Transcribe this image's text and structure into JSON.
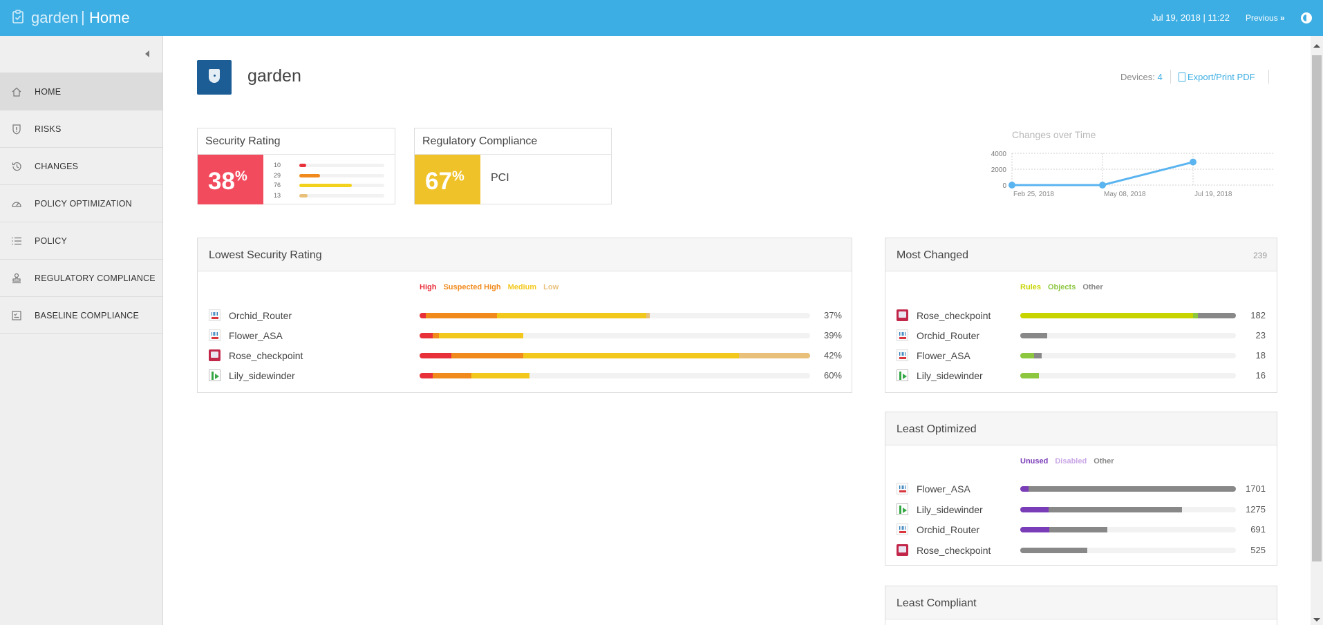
{
  "header": {
    "brand": "garden",
    "separator": "|",
    "page": "Home",
    "datetime": "Jul 19, 2018 | 11:22",
    "previous_label": "Previous",
    "previous_icon": "»"
  },
  "sidebar": {
    "items": [
      {
        "label": "HOME",
        "icon": "home-icon",
        "active": true
      },
      {
        "label": "RISKS",
        "icon": "shield-alert-icon"
      },
      {
        "label": "CHANGES",
        "icon": "history-icon"
      },
      {
        "label": "POLICY OPTIMIZATION",
        "icon": "gauge-icon"
      },
      {
        "label": "POLICY",
        "icon": "list-icon"
      },
      {
        "label": "REGULATORY COMPLIANCE",
        "icon": "stamp-icon"
      },
      {
        "label": "BASELINE COMPLIANCE",
        "icon": "checklist-icon"
      }
    ]
  },
  "device": {
    "name": "garden",
    "devices_label": "Devices:",
    "devices_count": "4",
    "export_label": "Export/Print PDF"
  },
  "security_rating": {
    "title": "Security Rating",
    "value": "38",
    "unit": "%",
    "color": "#f34b5e",
    "breakdown": [
      {
        "value": "10",
        "fraction": 0.08,
        "color": "#e8303a"
      },
      {
        "value": "29",
        "fraction": 0.24,
        "color": "#f08a1d"
      },
      {
        "value": "76",
        "fraction": 0.62,
        "color": "#f3d21d"
      },
      {
        "value": "13",
        "fraction": 0.1,
        "color": "#e8c07a"
      }
    ]
  },
  "regulatory_compliance": {
    "title": "Regulatory Compliance",
    "value": "67",
    "unit": "%",
    "color": "#f0c22a",
    "standard": "PCI"
  },
  "changes_over_time": {
    "title": "Changes over Time",
    "chart_data": {
      "type": "line",
      "title": "Changes over Time",
      "x": [
        "Feb 25, 2018",
        "May 08, 2018",
        "Jul 19, 2018"
      ],
      "series": [
        {
          "values": [
            0,
            0,
            2900
          ]
        }
      ],
      "yticks": [
        "4000",
        "2000",
        "0"
      ],
      "ylim": [
        0,
        4000
      ],
      "grid": true,
      "color": "#5ab4f0"
    }
  },
  "lowest_security": {
    "title": "Lowest Security Rating",
    "legend": [
      {
        "label": "High",
        "color": "#e8303a"
      },
      {
        "label": "Suspected High",
        "color": "#f08a1d"
      },
      {
        "label": "Medium",
        "color": "#f3c81d"
      },
      {
        "label": "Low",
        "color": "#e8c07a"
      }
    ],
    "rows": [
      {
        "name": "Orchid_Router",
        "icon": "cisco",
        "value": "37%",
        "segments": [
          0.016,
          0.182,
          0.383,
          0.009
        ]
      },
      {
        "name": "Flower_ASA",
        "icon": "cisco",
        "value": "39%",
        "segments": [
          0.033,
          0.017,
          0.215,
          0
        ]
      },
      {
        "name": "Rose_checkpoint",
        "icon": "checkpoint",
        "value": "42%",
        "segments": [
          0.082,
          0.184,
          0.551,
          0.183
        ]
      },
      {
        "name": "Lily_sidewinder",
        "icon": "sidewinder",
        "value": "60%",
        "segments": [
          0.033,
          0.1,
          0.148,
          0
        ]
      }
    ]
  },
  "most_changed": {
    "title": "Most Changed",
    "count": "239",
    "legend": [
      {
        "label": "Rules",
        "color": "#c8d400"
      },
      {
        "label": "Objects",
        "color": "#8dc63f"
      },
      {
        "label": "Other",
        "color": "#888888"
      }
    ],
    "rows": [
      {
        "name": "Rose_checkpoint",
        "icon": "checkpoint",
        "value": "182",
        "segments": [
          0.8,
          0.025,
          0.175
        ]
      },
      {
        "name": "Orchid_Router",
        "icon": "cisco",
        "value": "23",
        "segments": [
          0,
          0,
          0.125
        ]
      },
      {
        "name": "Flower_ASA",
        "icon": "cisco",
        "value": "18",
        "segments": [
          0,
          0.065,
          0.033
        ]
      },
      {
        "name": "Lily_sidewinder",
        "icon": "sidewinder",
        "value": "16",
        "segments": [
          0,
          0.088,
          0
        ]
      }
    ]
  },
  "least_optimized": {
    "title": "Least Optimized",
    "legend": [
      {
        "label": "Unused",
        "color": "#7a3db8"
      },
      {
        "label": "Disabled",
        "color": "#c9a6e6"
      },
      {
        "label": "Other",
        "color": "#888888"
      }
    ],
    "rows": [
      {
        "name": "Flower_ASA",
        "icon": "cisco",
        "value": "1701",
        "segments": [
          0.04,
          0,
          0.96
        ]
      },
      {
        "name": "Lily_sidewinder",
        "icon": "sidewinder",
        "value": "1275",
        "segments": [
          0.13,
          0,
          0.62
        ]
      },
      {
        "name": "Orchid_Router",
        "icon": "cisco",
        "value": "691",
        "segments": [
          0.135,
          0,
          0.27
        ]
      },
      {
        "name": "Rose_checkpoint",
        "icon": "checkpoint",
        "value": "525",
        "segments": [
          0,
          0,
          0.31
        ]
      }
    ]
  },
  "least_compliant": {
    "title": "Least Compliant"
  },
  "colors": {
    "topbar": "#3daee3",
    "accent": "#3daee3"
  }
}
